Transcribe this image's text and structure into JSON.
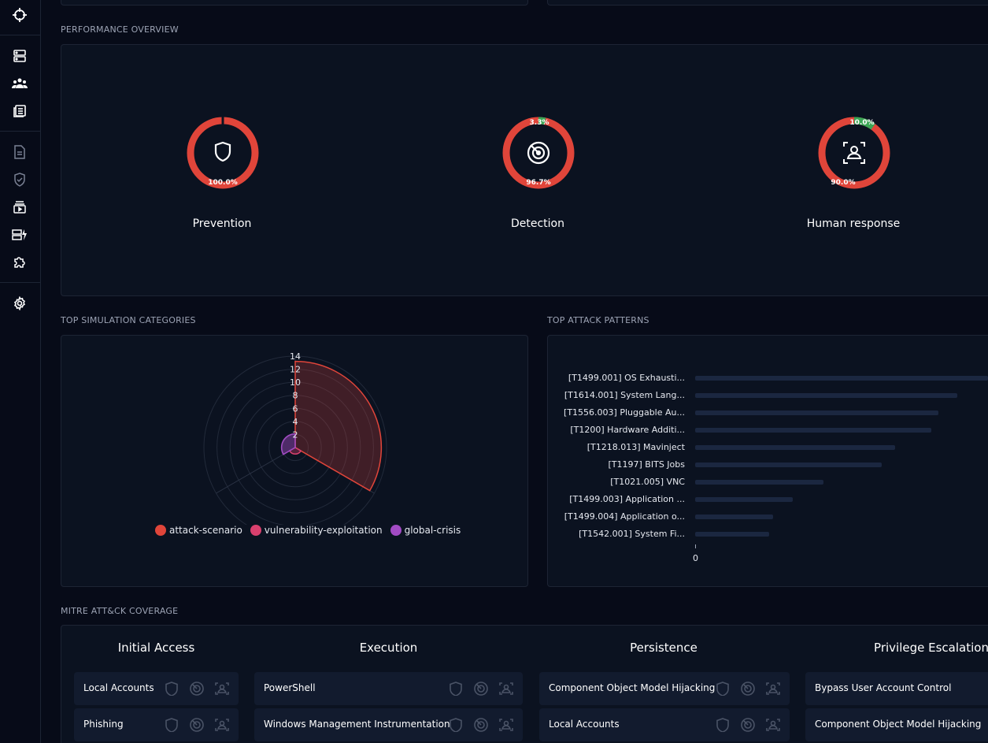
{
  "sidebar": {
    "icons": [
      "crosshair-icon",
      "server-icon",
      "users-icon",
      "news-icon",
      "document-icon",
      "shield-check-icon",
      "play-stack-icon",
      "cards-bolt-icon",
      "puzzle-icon",
      "gear-icon"
    ]
  },
  "performance": {
    "title": "PERFORMANCE OVERVIEW",
    "gauges": [
      {
        "label": "Prevention",
        "fail_pct": "100.0%",
        "success_pct": "",
        "success_fraction": 0.0,
        "icon": "shield-icon"
      },
      {
        "label": "Detection",
        "fail_pct": "96.7%",
        "success_pct": "3.3%",
        "success_fraction": 0.033,
        "icon": "radar-icon"
      },
      {
        "label": "Human response",
        "fail_pct": "90.0%",
        "success_pct": "10.0%",
        "success_fraction": 0.1,
        "icon": "person-scan-icon"
      }
    ],
    "colors": {
      "fail": "#e0453a",
      "success": "#3aa655"
    }
  },
  "categories": {
    "title": "TOP SIMULATION CATEGORIES",
    "legend": [
      {
        "name": "attack-scenario",
        "color": "#e0453a"
      },
      {
        "name": "vulnerability-exploitation",
        "color": "#d9406e"
      },
      {
        "name": "global-crisis",
        "color": "#a24bc4"
      }
    ]
  },
  "chart_data": {
    "type": "bar",
    "title": "TOP ATTACK PATTERNS",
    "orientation": "horizontal",
    "categories": [
      "[T1499.001] OS Exhausti...",
      "[T1614.001] System Lang...",
      "[T1556.003] Pluggable Au...",
      "[T1200] Hardware Additi...",
      "[T1218.013] Mavinject",
      "[T1197] BITS Jobs",
      "[T1021.005] VNC",
      "[T1499.003] Application ...",
      "[T1499.004] Application o...",
      "[T1542.001] System Fi..."
    ],
    "values": [
      13.5,
      12.1,
      11.2,
      10.9,
      9.2,
      8.6,
      5.9,
      4.5,
      3.6,
      3.4
    ],
    "x_tick_labels": [
      "0"
    ],
    "bar_color": "#1b2740"
  },
  "radar_chart": {
    "type": "polar-area",
    "r_ticks": [
      "14",
      "12",
      "10",
      "8",
      "6",
      "4",
      "2"
    ],
    "rmax": 14,
    "sectors": [
      {
        "series": "attack-scenario",
        "value": 13.2
      },
      {
        "series": "vulnerability-exploitation",
        "value": 1
      },
      {
        "series": "global-crisis",
        "value": 2.1
      }
    ]
  },
  "mitre": {
    "title": "MITRE ATT&CK COVERAGE",
    "tactics": [
      {
        "name": "Initial Access",
        "techniques": [
          "Local Accounts",
          "Phishing"
        ]
      },
      {
        "name": "Execution",
        "techniques": [
          "PowerShell",
          "Windows Management Instrumentation"
        ]
      },
      {
        "name": "Persistence",
        "techniques": [
          "Component Object Model Hijacking",
          "Local Accounts"
        ]
      },
      {
        "name": "Privilege Escalation",
        "techniques": [
          "Bypass User Account Control",
          "Component Object Model Hijacking"
        ]
      }
    ]
  }
}
